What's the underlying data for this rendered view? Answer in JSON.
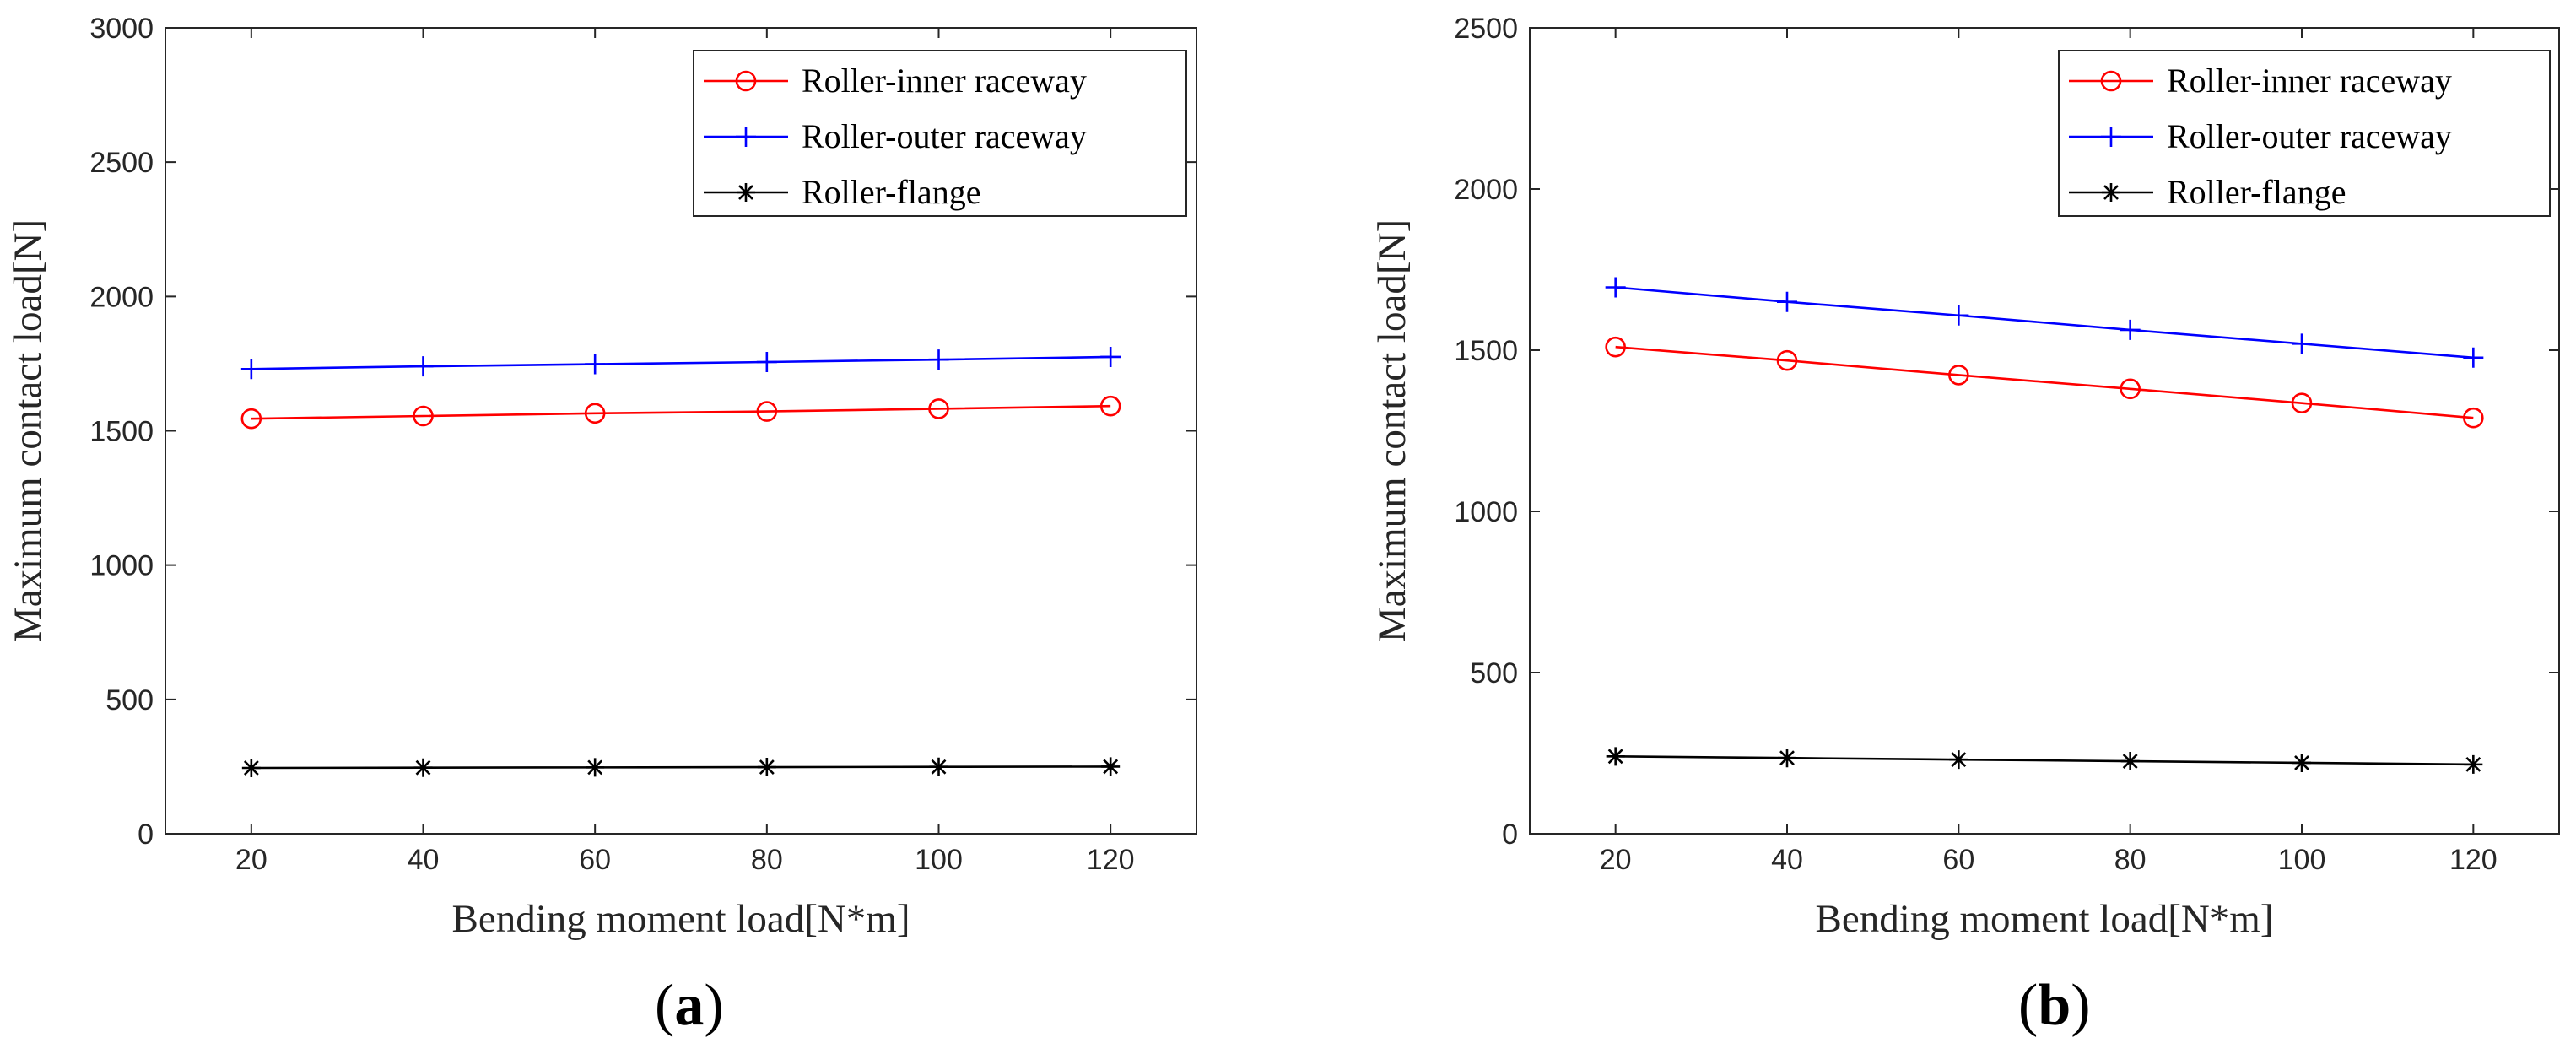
{
  "chart_data": [
    {
      "type": "line",
      "panel": "a",
      "panel_label": "a",
      "xlabel": "Bending moment load[N*m]",
      "ylabel": "Maximum contact load[N]",
      "xlim": [
        10,
        130
      ],
      "ylim": [
        0,
        3000
      ],
      "xticks": [
        20,
        40,
        60,
        80,
        100,
        120
      ],
      "yticks": [
        0,
        500,
        1000,
        1500,
        2000,
        2500,
        3000
      ],
      "x": [
        20,
        40,
        60,
        80,
        100,
        120
      ],
      "legend_position": "top-right",
      "series": [
        {
          "name": "Roller-inner raceway",
          "color": "#ff0000",
          "marker": "circle",
          "values": [
            1545,
            1555,
            1565,
            1572,
            1582,
            1592
          ]
        },
        {
          "name": "Roller-outer raceway",
          "color": "#0000ff",
          "marker": "plus",
          "values": [
            1730,
            1740,
            1748,
            1756,
            1765,
            1775
          ]
        },
        {
          "name": "Roller-flange",
          "color": "#000000",
          "marker": "asterisk",
          "values": [
            245,
            246,
            247,
            248,
            249,
            250
          ]
        }
      ]
    },
    {
      "type": "line",
      "panel": "b",
      "panel_label": "b",
      "xlabel": "Bending moment load[N*m]",
      "ylabel": "Maximum contact load[N]",
      "xlim": [
        10,
        130
      ],
      "ylim": [
        0,
        2500
      ],
      "xticks": [
        20,
        40,
        60,
        80,
        100,
        120
      ],
      "yticks": [
        0,
        500,
        1000,
        1500,
        2000,
        2500
      ],
      "x": [
        20,
        40,
        60,
        80,
        100,
        120
      ],
      "legend_position": "top-right",
      "series": [
        {
          "name": "Roller-inner raceway",
          "color": "#ff0000",
          "marker": "circle",
          "values": [
            1510,
            1468,
            1423,
            1380,
            1336,
            1290
          ]
        },
        {
          "name": "Roller-outer raceway",
          "color": "#0000ff",
          "marker": "plus",
          "values": [
            1695,
            1650,
            1608,
            1563,
            1520,
            1477
          ]
        },
        {
          "name": "Roller-flange",
          "color": "#000000",
          "marker": "asterisk",
          "values": [
            240,
            235,
            230,
            225,
            220,
            215
          ]
        }
      ]
    }
  ]
}
